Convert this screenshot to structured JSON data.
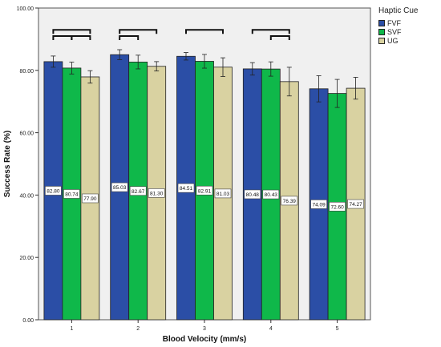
{
  "chart_data": {
    "type": "bar",
    "xlabel": "Blood Velocity (mm/s)",
    "ylabel": "Success Rate (%)",
    "ylim": [
      0,
      100
    ],
    "yticks": [
      "0.00",
      "20.00",
      "40.00",
      "60.00",
      "80.00",
      "100.00"
    ],
    "categories": [
      "1",
      "2",
      "3",
      "4",
      "5"
    ],
    "legend_title": "Haptic Cue",
    "legend_position": "top-right",
    "series": [
      {
        "name": "FVF",
        "color": "#2b4ea6",
        "values": [
          82.8,
          85.03,
          84.51,
          80.48,
          74.09
        ],
        "labels": [
          "82.80",
          "85.03",
          "84.51",
          "80.48",
          "74.09"
        ],
        "error": [
          1.8,
          1.6,
          1.2,
          2.0,
          4.2
        ]
      },
      {
        "name": "SVF",
        "color": "#0fb84a",
        "values": [
          80.74,
          82.67,
          82.91,
          80.43,
          72.6
        ],
        "labels": [
          "80.74",
          "82.67",
          "82.91",
          "80.43",
          "72.60"
        ],
        "error": [
          1.9,
          2.2,
          2.2,
          2.3,
          4.5
        ]
      },
      {
        "name": "UG",
        "color": "#d9d2a1",
        "values": [
          77.9,
          81.3,
          81.03,
          76.39,
          74.27
        ],
        "labels": [
          "77.90",
          "81.30",
          "81.03",
          "76.39",
          "74.27"
        ],
        "error": [
          2.0,
          1.5,
          3.0,
          4.6,
          3.5
        ]
      }
    ],
    "grid": false
  }
}
